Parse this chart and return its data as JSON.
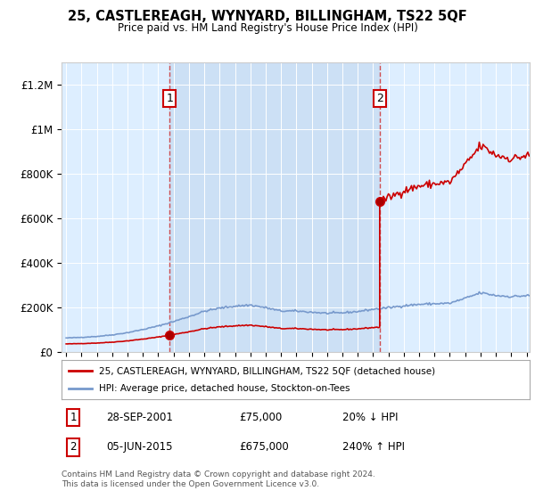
{
  "title": "25, CASTLEREAGH, WYNYARD, BILLINGHAM, TS22 5QF",
  "subtitle": "Price paid vs. HM Land Registry's House Price Index (HPI)",
  "bg_color": "#ddeeff",
  "highlight_color": "#cce0f5",
  "ylim": [
    0,
    1300000
  ],
  "yticks": [
    0,
    200000,
    400000,
    600000,
    800000,
    1000000,
    1200000
  ],
  "ytick_labels": [
    "£0",
    "£200K",
    "£400K",
    "£600K",
    "£800K",
    "£1M",
    "£1.2M"
  ],
  "year_start": 1995,
  "year_end": 2025,
  "sale1_year": 2001.75,
  "sale1_price": 75000,
  "sale2_year": 2015.43,
  "sale2_price": 675000,
  "red_line_color": "#cc0000",
  "blue_line_color": "#7799cc",
  "annotation1_date": "28-SEP-2001",
  "annotation1_price": "£75,000",
  "annotation1_hpi": "20% ↓ HPI",
  "annotation2_date": "05-JUN-2015",
  "annotation2_price": "£675,000",
  "annotation2_hpi": "240% ↑ HPI",
  "footer1": "Contains HM Land Registry data © Crown copyright and database right 2024.",
  "footer2": "This data is licensed under the Open Government Licence v3.0.",
  "legend_line1": "25, CASTLEREAGH, WYNYARD, BILLINGHAM, TS22 5QF (detached house)",
  "legend_line2": "HPI: Average price, detached house, Stockton-on-Tees"
}
